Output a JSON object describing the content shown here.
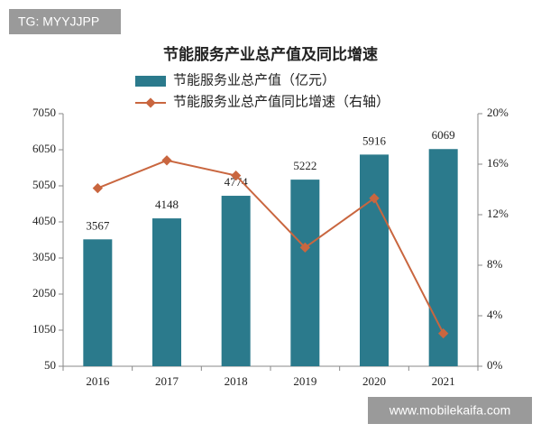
{
  "chart_data": {
    "type": "bar_line",
    "title": "节能服务产业总产值及同比增速",
    "categories": [
      "2016",
      "2017",
      "2018",
      "2019",
      "2020",
      "2021"
    ],
    "series": [
      {
        "name": "节能服务业总产值（亿元）",
        "color": "#2b7a8c",
        "type": "bar",
        "values": [
          3567,
          4148,
          4774,
          5222,
          5916,
          6069
        ]
      },
      {
        "name": "节能服务业总产值同比增速（右轴）",
        "color": "#c9663f",
        "type": "line",
        "axis": "y2",
        "values": [
          14.1,
          16.3,
          15.1,
          9.4,
          13.3,
          2.6
        ]
      }
    ],
    "ylim": [
      50,
      7050
    ],
    "yticks": [
      50,
      1050,
      2050,
      3050,
      4050,
      5050,
      6050,
      7050
    ],
    "y2lim": [
      0,
      20
    ],
    "y2ticks": [
      {
        "value": 0,
        "label": "0%"
      },
      {
        "value": 4,
        "label": "4%"
      },
      {
        "value": 8,
        "label": "8%"
      },
      {
        "value": 12,
        "label": "12%"
      },
      {
        "value": 16,
        "label": "16%"
      },
      {
        "value": 20,
        "label": "20%"
      }
    ],
    "legend": "top",
    "annotations": [
      "TG: MYYJJPP",
      "www.mobilekaifa.com"
    ]
  }
}
